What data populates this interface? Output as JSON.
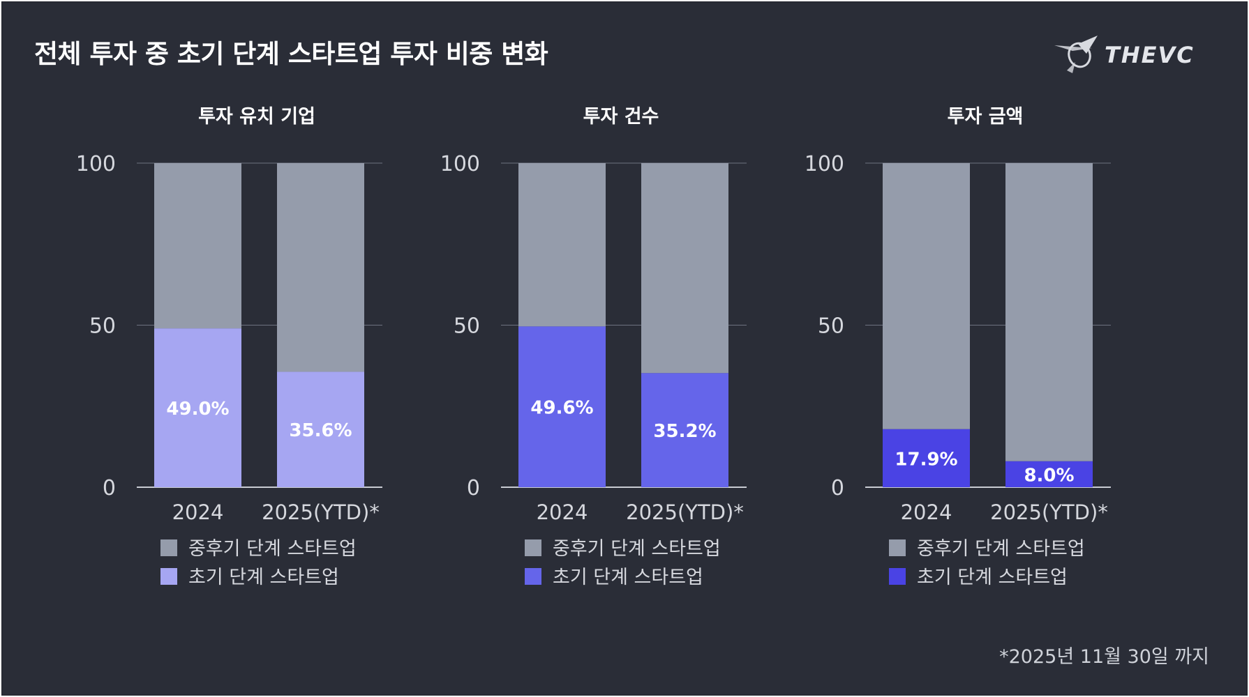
{
  "title": "전체 투자 중 초기 단계 스타트업 투자 비중 변화",
  "logo_text": "THEVC",
  "footnote": "*2025년 11월 30일 까지",
  "colors": {
    "background": "#2a2d37",
    "later_stage": "#959cab",
    "grid": "#6e7280",
    "text": "#ffffff",
    "axis_text": "#d6d8de"
  },
  "chart_data": [
    {
      "type": "bar",
      "stacked": true,
      "title": "투자 유치 기업",
      "categories": [
        "2024",
        "2025(YTD)*"
      ],
      "ylim": [
        0,
        100
      ],
      "yticks": [
        0,
        50,
        100
      ],
      "series": [
        {
          "name": "초기 단계 스타트업",
          "values": [
            49.0,
            35.6
          ],
          "labels": [
            "49.0%",
            "35.6%"
          ],
          "color": "#a6a6f2"
        },
        {
          "name": "중후기 단계 스타트업",
          "values": [
            51.0,
            64.4
          ],
          "color": "#959cab"
        }
      ],
      "legend": [
        "중후기 단계 스타트업",
        "초기 단계 스타트업"
      ],
      "legend_position": "bottom"
    },
    {
      "type": "bar",
      "stacked": true,
      "title": "투자 건수",
      "categories": [
        "2024",
        "2025(YTD)*"
      ],
      "ylim": [
        0,
        100
      ],
      "yticks": [
        0,
        50,
        100
      ],
      "series": [
        {
          "name": "초기 단계 스타트업",
          "values": [
            49.6,
            35.2
          ],
          "labels": [
            "49.6%",
            "35.2%"
          ],
          "color": "#6565ea"
        },
        {
          "name": "중후기 단계 스타트업",
          "values": [
            50.4,
            64.8
          ],
          "color": "#959cab"
        }
      ],
      "legend": [
        "중후기 단계 스타트업",
        "초기 단계 스타트업"
      ],
      "legend_position": "bottom"
    },
    {
      "type": "bar",
      "stacked": true,
      "title": "투자 금액",
      "categories": [
        "2024",
        "2025(YTD)*"
      ],
      "ylim": [
        0,
        100
      ],
      "yticks": [
        0,
        50,
        100
      ],
      "series": [
        {
          "name": "초기 단계 스타트업",
          "values": [
            17.9,
            8.0
          ],
          "labels": [
            "17.9%",
            "8.0%"
          ],
          "color": "#4a43e4"
        },
        {
          "name": "중후기 단계 스타트업",
          "values": [
            82.1,
            92.0
          ],
          "color": "#959cab"
        }
      ],
      "legend": [
        "중후기 단계 스타트업",
        "초기 단계 스타트업"
      ],
      "legend_position": "bottom"
    }
  ]
}
